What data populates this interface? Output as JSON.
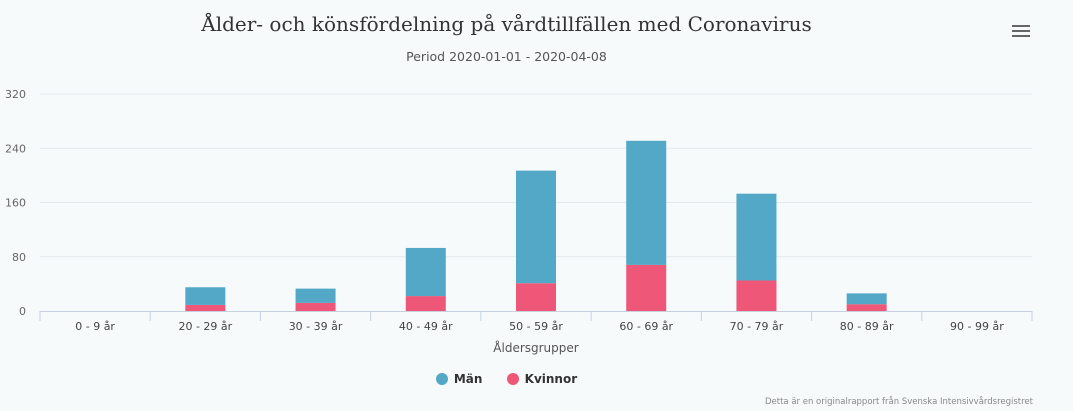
{
  "title": "Ålder- och könsfördelning på vårdtillfällen med Coronavirus",
  "subtitle": "Period 2020-01-01 - 2020-04-08",
  "menu_icon": "hamburger-menu-icon",
  "credits": "Detta är en originalrapport från Svenska Intensivvårdsregistret",
  "colors": {
    "man": "#52a8c6",
    "kvinnor": "#ee5777",
    "grid": "#e3e8ec",
    "axis": "#c6d1dd"
  },
  "legend": [
    {
      "label": "Män",
      "color": "#52a8c6"
    },
    {
      "label": "Kvinnor",
      "color": "#ee5777"
    }
  ],
  "chart_data": {
    "type": "bar",
    "stacked": true,
    "categories": [
      "0 - 9 år",
      "20 - 29 år",
      "30 - 39 år",
      "40 - 49 år",
      "50 - 59 år",
      "60 - 69 år",
      "70 - 79 år",
      "80 - 89 år",
      "90 - 99 år"
    ],
    "series": [
      {
        "name": "Män",
        "values": [
          0,
          26,
          21,
          71,
          166,
          183,
          128,
          16,
          0
        ]
      },
      {
        "name": "Kvinnor",
        "values": [
          0,
          9,
          12,
          22,
          41,
          68,
          45,
          10,
          0
        ]
      }
    ],
    "xlabel": "Åldersgrupper",
    "ylabel": "",
    "ylim": [
      0,
      320
    ],
    "yticks": [
      "0",
      "80",
      "160",
      "240",
      "320"
    ],
    "grid": true,
    "legend_position": "bottom"
  }
}
